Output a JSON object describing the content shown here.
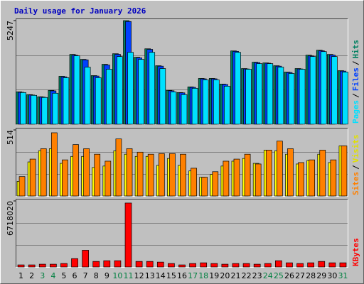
{
  "chart_data": [
    {
      "type": "bar",
      "title": "Daily usage for January 2026",
      "title_color": "#0000c0",
      "ylim": [
        0,
        5247
      ],
      "yticks": [
        5247
      ],
      "series": [
        {
          "name": "Hits",
          "color": "#008060",
          "values": [
            1642,
            1500,
            1392,
            1714,
            2428,
            3534,
            3284,
            2463,
            3034,
            3570,
            5247,
            3391,
            3820,
            2963,
            1714,
            1606,
            1892,
            2321,
            2321,
            2035,
            3713,
            2820,
            3142,
            3106,
            2963,
            2642,
            2820,
            3499,
            3749,
            3534,
            2713
          ]
        },
        {
          "name": "Files",
          "color": "#0040ff",
          "values": [
            1620,
            1480,
            1375,
            1690,
            2400,
            3500,
            3260,
            2440,
            3000,
            3540,
            5200,
            3360,
            3790,
            2940,
            1695,
            1590,
            1870,
            2300,
            2300,
            2015,
            3690,
            2800,
            3120,
            3090,
            2940,
            2620,
            2800,
            3460,
            3720,
            3505,
            2690
          ]
        },
        {
          "name": "Pages",
          "color": "#00e0ff",
          "values": [
            1606,
            1464,
            1357,
            1571,
            2356,
            3463,
            2892,
            2356,
            2785,
            3427,
            3641,
            3284,
            3641,
            2820,
            1642,
            1500,
            1821,
            2249,
            2249,
            1928,
            3641,
            2785,
            3070,
            3070,
            2892,
            2570,
            2785,
            3427,
            3677,
            3427,
            2642
          ]
        }
      ]
    },
    {
      "type": "bar",
      "ylim": [
        0,
        514
      ],
      "yticks": [
        514
      ],
      "series": [
        {
          "name": "Visits",
          "color": "#ffff00",
          "legend_color": "#e0e000",
          "values": [
            114,
            265,
            352,
            368,
            254,
            308,
            308,
            222,
            233,
            352,
            325,
            308,
            308,
            238,
            292,
            238,
            195,
            146,
            168,
            233,
            271,
            292,
            254,
            357,
            352,
            325,
            249,
            276,
            325,
            260,
            390
          ]
        },
        {
          "name": "Sites",
          "color": "#ff8000",
          "legend_color": "#ff8000",
          "values": [
            151,
            287,
            368,
            492,
            281,
            400,
            368,
            325,
            271,
            444,
            368,
            341,
            325,
            330,
            330,
            325,
            216,
            146,
            189,
            271,
            287,
            325,
            249,
            357,
            427,
            368,
            260,
            281,
            357,
            281,
            390
          ]
        }
      ]
    },
    {
      "type": "bar",
      "ylim": [
        0,
        6718020
      ],
      "yticks": [
        6718020
      ],
      "categories": [
        "1",
        "2",
        "3",
        "4",
        "5",
        "6",
        "7",
        "8",
        "9",
        "10",
        "11",
        "12",
        "13",
        "14",
        "15",
        "16",
        "17",
        "18",
        "19",
        "20",
        "21",
        "22",
        "23",
        "24",
        "25",
        "26",
        "27",
        "28",
        "29",
        "30",
        "31"
      ],
      "category_colors": [
        "#000000",
        "#000000",
        "#008040",
        "#008040",
        "#000000",
        "#000000",
        "#000000",
        "#000000",
        "#000000",
        "#008040",
        "#008040",
        "#000000",
        "#000000",
        "#000000",
        "#000000",
        "#000000",
        "#008040",
        "#008040",
        "#000000",
        "#000000",
        "#000000",
        "#000000",
        "#000000",
        "#008040",
        "#008040",
        "#000000",
        "#000000",
        "#000000",
        "#000000",
        "#000000",
        "#008040"
      ],
      "series": [
        {
          "name": "KBytes",
          "color": "#ff0000",
          "values": [
            212000,
            212000,
            283000,
            283000,
            354000,
            849000,
            1700000,
            566000,
            636000,
            636000,
            6505000,
            566000,
            566000,
            495000,
            354000,
            212000,
            354000,
            424000,
            354000,
            283000,
            354000,
            354000,
            283000,
            354000,
            636000,
            424000,
            354000,
            424000,
            566000,
            424000,
            424000
          ]
        }
      ]
    }
  ],
  "legend_separator": "/"
}
